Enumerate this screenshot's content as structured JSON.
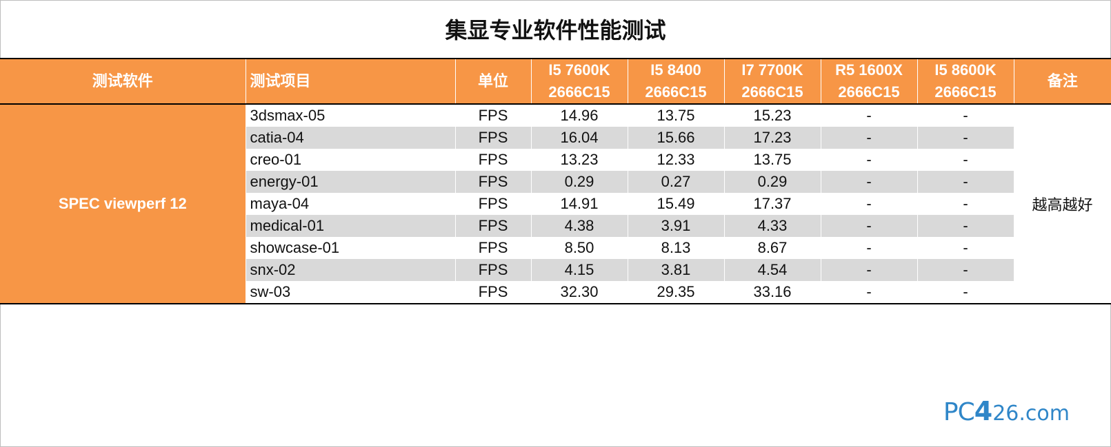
{
  "title": "集显专业软件性能测试",
  "header": {
    "software": "测试软件",
    "item": "测试项目",
    "unit": "单位",
    "cpus": [
      {
        "line1": "I5 7600K",
        "line2": "2666C15"
      },
      {
        "line1": "I5 8400",
        "line2": "2666C15"
      },
      {
        "line1": "I7 7700K",
        "line2": "2666C15"
      },
      {
        "line1": "R5 1600X",
        "line2": "2666C15"
      },
      {
        "line1": "I5 8600K",
        "line2": "2666C15"
      }
    ],
    "note": "备注"
  },
  "software_name": "SPEC viewperf 12",
  "note_text": "越高越好",
  "rows": [
    {
      "item": "3dsmax-05",
      "unit": "FPS",
      "values": [
        "14.96",
        "13.75",
        "15.23",
        "-",
        "-"
      ]
    },
    {
      "item": "catia-04",
      "unit": "FPS",
      "values": [
        "16.04",
        "15.66",
        "17.23",
        "-",
        "-"
      ]
    },
    {
      "item": "creo-01",
      "unit": "FPS",
      "values": [
        "13.23",
        "12.33",
        "13.75",
        "-",
        "-"
      ]
    },
    {
      "item": "energy-01",
      "unit": "FPS",
      "values": [
        "0.29",
        "0.27",
        "0.29",
        "-",
        "-"
      ]
    },
    {
      "item": "maya-04",
      "unit": "FPS",
      "values": [
        "14.91",
        "15.49",
        "17.37",
        "-",
        "-"
      ]
    },
    {
      "item": "medical-01",
      "unit": "FPS",
      "values": [
        "4.38",
        "3.91",
        "4.33",
        "-",
        "-"
      ]
    },
    {
      "item": "showcase-01",
      "unit": "FPS",
      "values": [
        "8.50",
        "8.13",
        "8.67",
        "-",
        "-"
      ]
    },
    {
      "item": "snx-02",
      "unit": "FPS",
      "values": [
        "4.15",
        "3.81",
        "4.54",
        "-",
        "-"
      ]
    },
    {
      "item": "sw-03",
      "unit": "FPS",
      "values": [
        "32.30",
        "29.35",
        "33.16",
        "-",
        "-"
      ]
    }
  ],
  "watermark": {
    "part1": "PC",
    "part2": "4",
    "part3": "26.com"
  }
}
